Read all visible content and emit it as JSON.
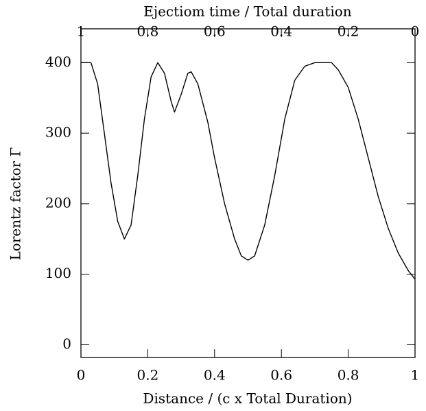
{
  "chart_data": {
    "type": "line",
    "xlabel": "Distance / (c x Total Duration)",
    "ylabel": "Lorentz factor Γ",
    "x2label": "Ejectiom time / Total duration",
    "xlim": [
      0,
      1
    ],
    "xticks": [
      0,
      0.2,
      0.4,
      0.6,
      0.8,
      1
    ],
    "x2lim": [
      1,
      0
    ],
    "x2ticks": [
      1,
      0.8,
      0.6,
      0.4,
      0.2,
      0
    ],
    "ylim": [
      -18,
      448
    ],
    "yticks": [
      0,
      100,
      200,
      300,
      400
    ],
    "color": "#000000",
    "x": [
      0,
      0.03,
      0.05,
      0.07,
      0.09,
      0.11,
      0.13,
      0.15,
      0.17,
      0.19,
      0.21,
      0.23,
      0.25,
      0.27,
      0.28,
      0.3,
      0.32,
      0.33,
      0.35,
      0.38,
      0.4,
      0.43,
      0.46,
      0.48,
      0.5,
      0.52,
      0.55,
      0.58,
      0.61,
      0.64,
      0.67,
      0.7,
      0.75,
      0.77,
      0.8,
      0.83,
      0.86,
      0.89,
      0.92,
      0.95,
      0.98,
      1.0
    ],
    "values": [
      400,
      400,
      370,
      300,
      230,
      175,
      150,
      170,
      240,
      320,
      380,
      400,
      385,
      345,
      330,
      355,
      385,
      387,
      370,
      315,
      265,
      200,
      150,
      126,
      120,
      126,
      170,
      240,
      320,
      375,
      395,
      400,
      400,
      390,
      365,
      320,
      265,
      210,
      165,
      130,
      105,
      93
    ]
  }
}
